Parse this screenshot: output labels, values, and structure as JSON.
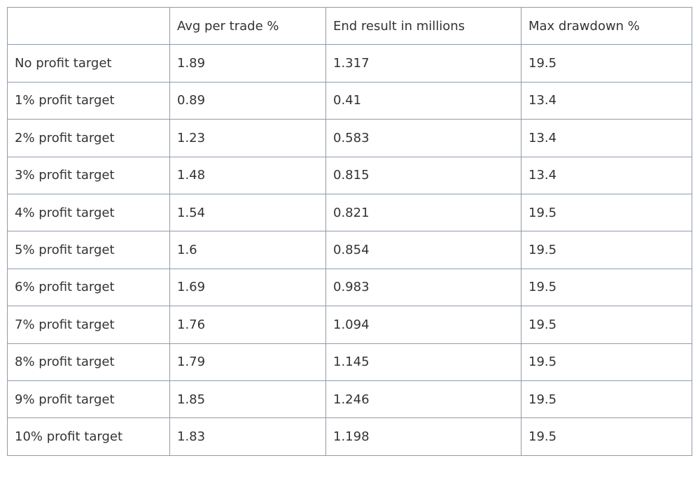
{
  "table": {
    "header": [
      "Avg per trade %",
      "End result in millions",
      "Max drawdown %"
    ],
    "rows": [
      [
        "No profit target",
        "1.89",
        "1.317",
        "19.5"
      ],
      [
        "1% profit target",
        "0.89",
        "0.41",
        "13.4"
      ],
      [
        "2% profit target",
        "1.23",
        "0.583",
        "13.4"
      ],
      [
        "3% profit target",
        "1.48",
        "0.815",
        "13.4"
      ],
      [
        "4% profit target",
        "1.54",
        "0.821",
        "19.5"
      ],
      [
        "5% profit target",
        "1.6",
        "0.854",
        "19.5"
      ],
      [
        "6% profit target",
        "1.69",
        "0.983",
        "19.5"
      ],
      [
        "7% profit target",
        "1.76",
        "1.094",
        "19.5"
      ],
      [
        "8% profit target",
        "1.79",
        "1.145",
        "19.5"
      ],
      [
        "9% profit target",
        "1.85",
        "1.246",
        "19.5"
      ],
      [
        "10% profit target",
        "1.83",
        "1.198",
        "19.5"
      ]
    ]
  }
}
